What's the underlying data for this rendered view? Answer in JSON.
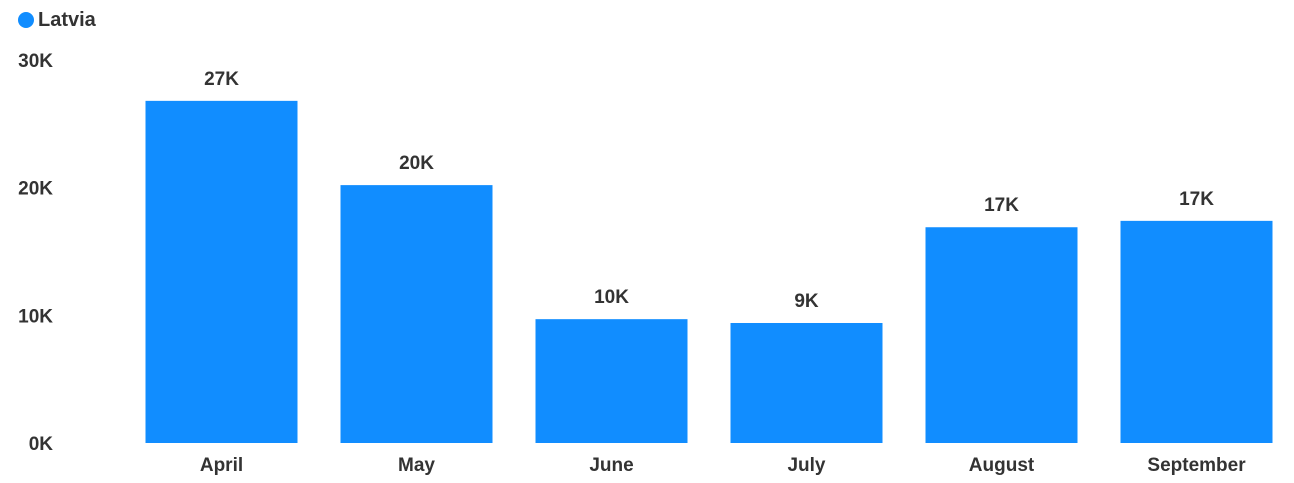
{
  "chart_data": {
    "type": "bar",
    "categories": [
      "April",
      "May",
      "June",
      "July",
      "August",
      "September"
    ],
    "series": [
      {
        "name": "Latvia",
        "values": [
          26800,
          20200,
          9700,
          9400,
          16900,
          17400
        ],
        "data_labels": [
          "27K",
          "20K",
          "10K",
          "9K",
          "17K",
          "17K"
        ]
      }
    ],
    "y_ticks": [
      0,
      10000,
      20000,
      30000
    ],
    "y_tick_labels": [
      "0K",
      "10K",
      "20K",
      "30K"
    ],
    "ylim": [
      0,
      30000
    ],
    "grid": false,
    "legend_position": "top-left",
    "colors": {
      "bar": "#118DFF",
      "text": "#333333"
    }
  }
}
